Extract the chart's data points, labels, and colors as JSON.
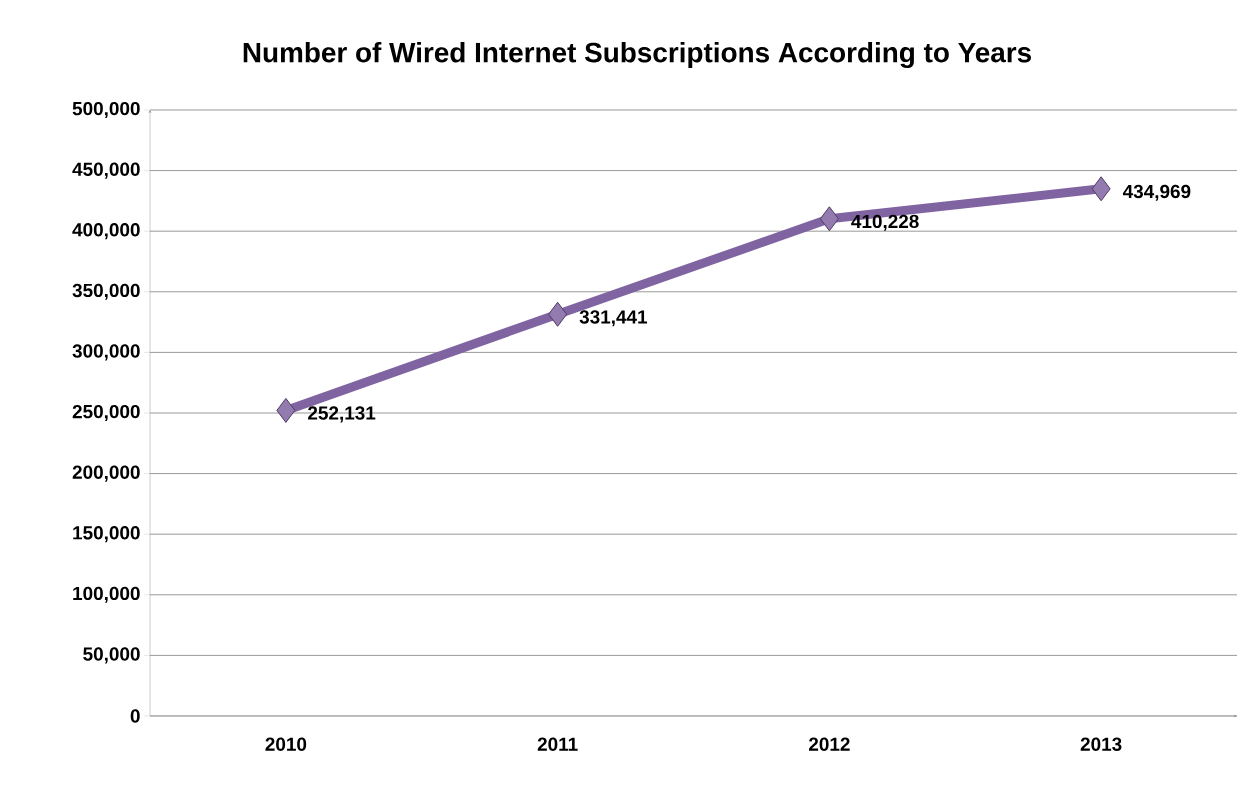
{
  "chart_data": {
    "type": "line",
    "title": "Number of Wired Internet Subscriptions According to Years",
    "categories": [
      "2010",
      "2011",
      "2012",
      "2013"
    ],
    "values": [
      252131,
      331441,
      410228,
      434969
    ],
    "value_labels": [
      "252,131",
      "331,441",
      "410,228",
      "434,969"
    ],
    "color": "#8064a2",
    "marker": "diamond",
    "line_style": "solid",
    "grid": "y",
    "ylim": [
      0,
      500000
    ],
    "yticks": [
      0,
      {
        "value": 50000,
        "label": "50,000"
      },
      {
        "value": 100000,
        "label": "100,000"
      },
      {
        "value": 150000,
        "label": "150,000"
      },
      {
        "value": 200000,
        "label": "200,000"
      },
      {
        "value": 250000,
        "label": "250,000"
      },
      {
        "value": 300000,
        "label": "300,000"
      },
      {
        "value": 350000,
        "label": "350,000"
      },
      {
        "value": 400000,
        "label": "400,000"
      },
      {
        "value": 450000,
        "label": "450,000"
      },
      {
        "value": 500000,
        "label": "500,000"
      }
    ]
  }
}
